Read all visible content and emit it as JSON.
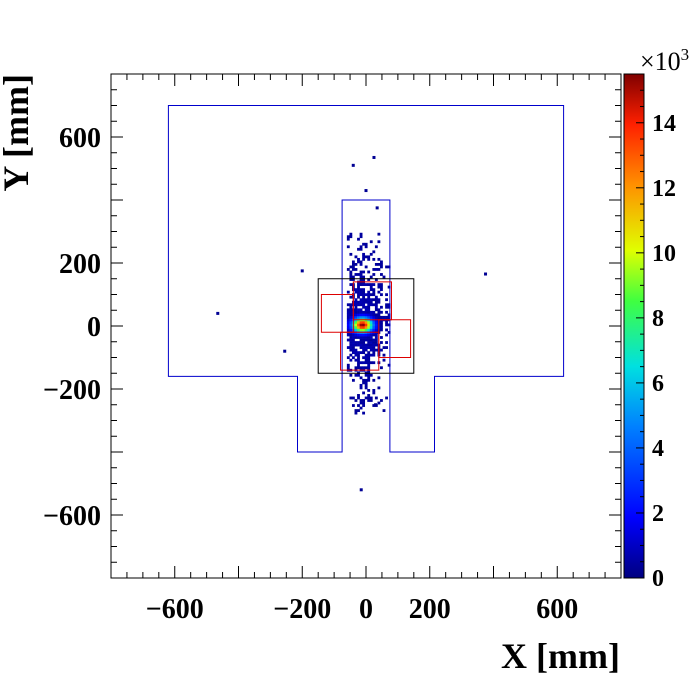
{
  "chart_data": {
    "type": "heatmap",
    "title": "",
    "xlabel": "X [mm]",
    "ylabel": "Y [mm]",
    "xlim": [
      -800,
      800
    ],
    "ylim": [
      -800,
      800
    ],
    "x_ticks": [
      -600,
      -200,
      0,
      200,
      600
    ],
    "x_tick_labels": [
      "−600",
      "−200",
      "0",
      "200",
      "600"
    ],
    "y_ticks": [
      600,
      200,
      0,
      -200,
      -600
    ],
    "y_tick_labels": [
      "600",
      "200",
      "0",
      "−200",
      "−600"
    ],
    "colorbar": {
      "range": [
        0,
        15.5
      ],
      "multiplier_base": "×10",
      "multiplier_exp": "3",
      "ticks": [
        0,
        2,
        4,
        6,
        8,
        10,
        12,
        14
      ],
      "tick_labels": [
        "0",
        "2",
        "4",
        "6",
        "8",
        "10",
        "12",
        "14"
      ],
      "colormap": "rainbow"
    },
    "density_blob": {
      "peak_x": -15,
      "peak_y": 0,
      "peak_value": 15.5,
      "bin_size": 8,
      "x_range": [
        -60,
        70
      ],
      "y_range": [
        -280,
        290
      ]
    },
    "points": [
      {
        "x": -40,
        "y": 510,
        "value": 0.3
      },
      {
        "x": 25,
        "y": 535,
        "value": 0.3
      },
      {
        "x": 0,
        "y": 430,
        "value": 0.3
      },
      {
        "x": 35,
        "y": 375,
        "value": 0.3
      },
      {
        "x": -200,
        "y": 175,
        "value": 0.3
      },
      {
        "x": 375,
        "y": 165,
        "value": 0.3
      },
      {
        "x": -465,
        "y": 40,
        "value": 0.3
      },
      {
        "x": -255,
        "y": -80,
        "value": 0.3
      },
      {
        "x": -15,
        "y": -520,
        "value": 0.3
      },
      {
        "x": 30,
        "y": -250,
        "value": 0.3
      }
    ],
    "outlines": [
      {
        "name": "outer-frame-outline",
        "color": "#0000cc",
        "points": [
          [
            -620,
            700
          ],
          [
            620,
            700
          ],
          [
            620,
            -160
          ],
          [
            215,
            -160
          ],
          [
            215,
            -400
          ],
          [
            75,
            -400
          ],
          [
            75,
            400
          ],
          [
            -75,
            400
          ],
          [
            -75,
            -400
          ],
          [
            -215,
            -400
          ],
          [
            -215,
            -160
          ],
          [
            -620,
            -160
          ]
        ],
        "closed": true
      },
      {
        "name": "black-box-outline",
        "color": "#000000",
        "points": [
          [
            -150,
            150
          ],
          [
            150,
            150
          ],
          [
            150,
            -150
          ],
          [
            -150,
            -150
          ]
        ],
        "closed": true
      },
      {
        "name": "red-box-a",
        "color": "#dd0000",
        "points": [
          [
            -140,
            100
          ],
          [
            -40,
            100
          ],
          [
            -40,
            -20
          ],
          [
            -140,
            -20
          ]
        ],
        "closed": true
      },
      {
        "name": "red-box-b",
        "color": "#dd0000",
        "points": [
          [
            -40,
            140
          ],
          [
            80,
            140
          ],
          [
            80,
            20
          ],
          [
            -40,
            20
          ]
        ],
        "closed": true
      },
      {
        "name": "red-box-c",
        "color": "#dd0000",
        "points": [
          [
            40,
            20
          ],
          [
            140,
            20
          ],
          [
            140,
            -100
          ],
          [
            40,
            -100
          ]
        ],
        "closed": true
      },
      {
        "name": "red-box-d",
        "color": "#dd0000",
        "points": [
          [
            -80,
            -20
          ],
          [
            40,
            -20
          ],
          [
            40,
            -140
          ],
          [
            -80,
            -140
          ]
        ],
        "closed": true
      }
    ]
  }
}
